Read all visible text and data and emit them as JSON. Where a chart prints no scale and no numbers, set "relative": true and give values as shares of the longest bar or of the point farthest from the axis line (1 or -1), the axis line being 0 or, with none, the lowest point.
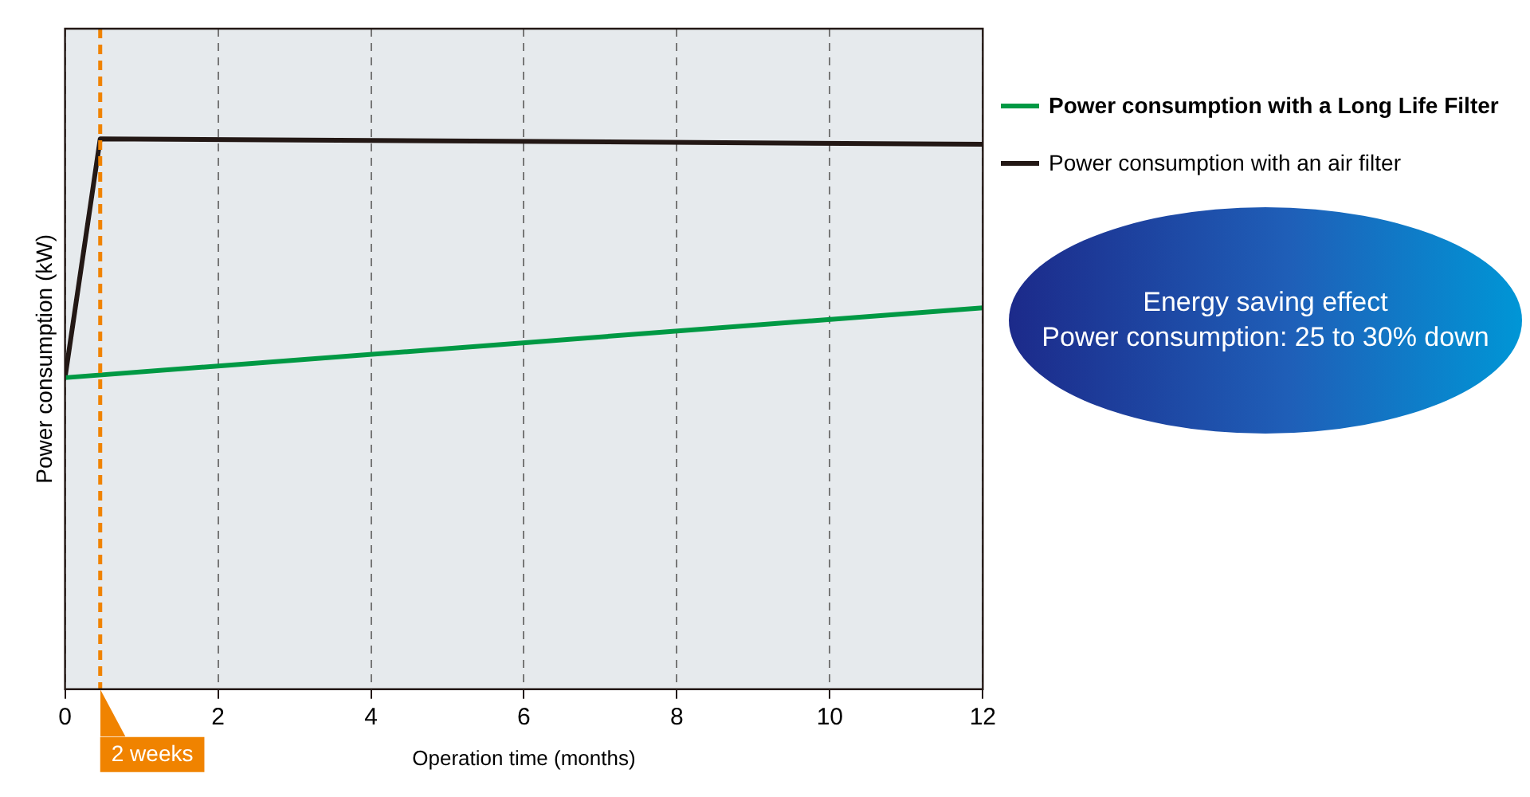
{
  "chart_data": {
    "type": "line",
    "relative": true,
    "xlabel": "Operation time (months)",
    "ylabel": "Power consumption (kW)",
    "xlim": [
      0,
      12
    ],
    "xticks": [
      0,
      2,
      4,
      6,
      8,
      10,
      12
    ],
    "grid": "x",
    "legend": "right",
    "marker": "none",
    "line_style": "solid",
    "series": [
      {
        "name": "Power consumption with a Long Life Filter",
        "color": "#009944",
        "x": [
          0,
          12
        ],
        "values": [
          0.566,
          0.693
        ]
      },
      {
        "name": "Power consumption with an air filter",
        "color": "#231815",
        "x": [
          0,
          0.46,
          12
        ],
        "values": [
          0.566,
          1,
          0.99
        ]
      }
    ],
    "ref_lines": [
      {
        "axis": "x",
        "value": 0.46,
        "label": "2 weeks",
        "color": "#f08300",
        "line_style": "dashed"
      }
    ],
    "annotations": [
      "Energy saving effect",
      "Power consumption: 25 to 30% down"
    ]
  }
}
